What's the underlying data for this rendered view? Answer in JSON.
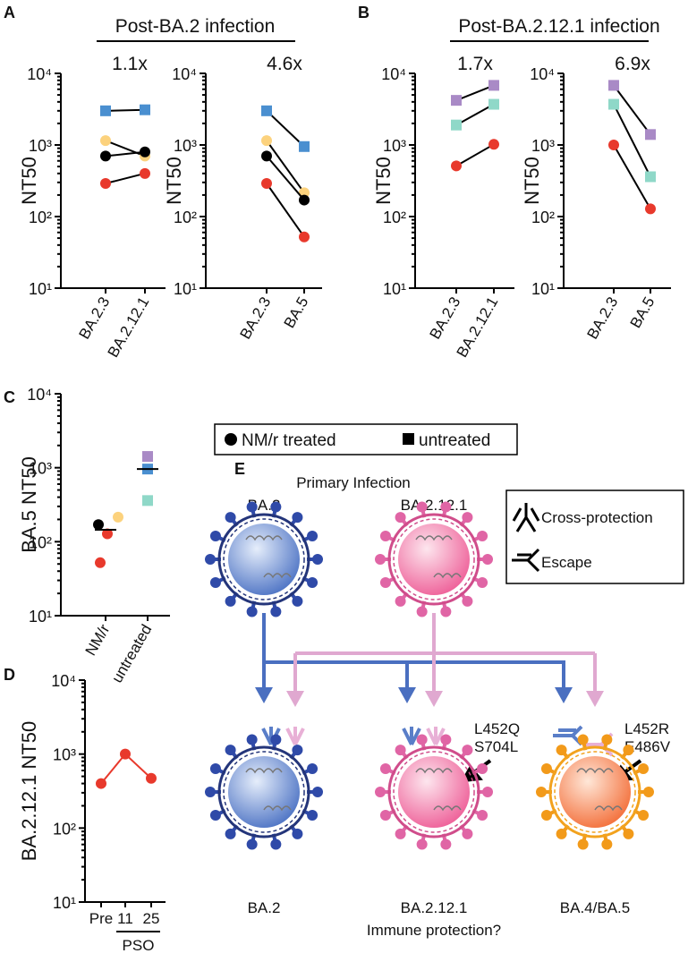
{
  "panel_labels": [
    "A",
    "B",
    "C",
    "D",
    "E"
  ],
  "group_titles": [
    "Post-BA.2 infection",
    "Post-BA.2.12.1 infection"
  ],
  "legend": [
    {
      "label": "NM/r treated",
      "marker": "circle"
    },
    {
      "label": "untreated",
      "marker": "square"
    }
  ],
  "diagram": {
    "title": "Primary Infection",
    "top": [
      "BA.2",
      "BA.2.12.1"
    ],
    "bottom": [
      "BA.2",
      "BA.2.12.1",
      "BA.4/BA.5"
    ],
    "key": [
      "Cross-protection",
      "Escape"
    ],
    "mutations": [
      [
        "L452Q",
        "S704L"
      ],
      [
        "L452R",
        "E486V"
      ]
    ],
    "caption": "Immune protection?"
  },
  "chart_data": [
    {
      "type": "line",
      "title": "1.1x",
      "ylabel": "NT50",
      "log_y": true,
      "categories": [
        "BA.2.3",
        "BA.2.12.1"
      ],
      "ylim": [
        10,
        10000
      ],
      "yticks": [
        {
          "value": 10,
          "label": "10¹"
        },
        {
          "value": 100,
          "label": "10²"
        },
        {
          "value": 1000,
          "label": "10³"
        },
        {
          "value": 10000,
          "label": "10⁴"
        }
      ],
      "series": [
        {
          "color": "#4a8fd0",
          "marker": "square",
          "values": [
            3000,
            3100
          ]
        },
        {
          "color": "#fcd27d",
          "marker": "circle",
          "values": [
            1150,
            700
          ]
        },
        {
          "color": "#000000",
          "marker": "circle",
          "values": [
            700,
            800
          ]
        },
        {
          "color": "#e8392c",
          "marker": "circle",
          "values": [
            290,
            400
          ]
        }
      ]
    },
    {
      "type": "line",
      "title": "4.6x",
      "ylabel": "NT50",
      "log_y": true,
      "categories": [
        "BA.2.3",
        "BA.5"
      ],
      "ylim": [
        10,
        10000
      ],
      "yticks": [
        {
          "value": 10,
          "label": "10¹"
        },
        {
          "value": 100,
          "label": "10²"
        },
        {
          "value": 1000,
          "label": "10³"
        },
        {
          "value": 10000,
          "label": "10⁴"
        }
      ],
      "series": [
        {
          "color": "#4a8fd0",
          "marker": "square",
          "values": [
            3000,
            950
          ]
        },
        {
          "color": "#fcd27d",
          "marker": "circle",
          "values": [
            1150,
            215
          ]
        },
        {
          "color": "#000000",
          "marker": "circle",
          "values": [
            700,
            170
          ]
        },
        {
          "color": "#e8392c",
          "marker": "circle",
          "values": [
            290,
            52
          ]
        }
      ]
    },
    {
      "type": "line",
      "title": "1.7x",
      "ylabel": "NT50",
      "log_y": true,
      "categories": [
        "BA.2.3",
        "BA.2.12.1"
      ],
      "ylim": [
        10,
        10000
      ],
      "yticks": [
        {
          "value": 10,
          "label": "10¹"
        },
        {
          "value": 100,
          "label": "10²"
        },
        {
          "value": 1000,
          "label": "10³"
        },
        {
          "value": 10000,
          "label": "10⁴"
        }
      ],
      "series": [
        {
          "color": "#a98ac6",
          "marker": "square",
          "values": [
            4200,
            6800
          ]
        },
        {
          "color": "#8fd8c8",
          "marker": "square",
          "values": [
            1900,
            3700
          ]
        },
        {
          "color": "#e8392c",
          "marker": "circle",
          "values": [
            510,
            1020
          ]
        }
      ]
    },
    {
      "type": "line",
      "title": "6.9x",
      "ylabel": "NT50",
      "log_y": true,
      "categories": [
        "BA.2.3",
        "BA.5"
      ],
      "ylim": [
        10,
        10000
      ],
      "yticks": [
        {
          "value": 10,
          "label": "10¹"
        },
        {
          "value": 100,
          "label": "10²"
        },
        {
          "value": 1000,
          "label": "10³"
        },
        {
          "value": 10000,
          "label": "10⁴"
        }
      ],
      "series": [
        {
          "color": "#a98ac6",
          "marker": "square",
          "values": [
            6800,
            1400
          ]
        },
        {
          "color": "#8fd8c8",
          "marker": "square",
          "values": [
            3700,
            360
          ]
        },
        {
          "color": "#e8392c",
          "marker": "circle",
          "values": [
            1000,
            128
          ]
        }
      ]
    },
    {
      "type": "strip",
      "ylabel": "BA.5 NT50",
      "log_y": true,
      "categories": [
        "NM/r",
        "untreated"
      ],
      "ylim": [
        10,
        10000
      ],
      "yticks": [
        {
          "value": 10,
          "label": "10¹"
        },
        {
          "value": 100,
          "label": "10²"
        },
        {
          "value": 1000,
          "label": "10³"
        },
        {
          "value": 10000,
          "label": "10⁴"
        }
      ],
      "medians": [
        145,
        960
      ],
      "series": [
        {
          "color": "#000000",
          "marker": "circle",
          "values": [
            170,
            null
          ]
        },
        {
          "color": "#fcd27d",
          "marker": "circle",
          "values": [
            215,
            null
          ]
        },
        {
          "color": "#e8392c",
          "marker": "circle",
          "values": [
            128,
            null
          ]
        },
        {
          "color": "#e8392c",
          "marker": "circle",
          "values": [
            52,
            null
          ]
        },
        {
          "color": "#a98ac6",
          "marker": "square",
          "values": [
            null,
            1420
          ]
        },
        {
          "color": "#4a8fd0",
          "marker": "square",
          "values": [
            null,
            960
          ]
        },
        {
          "color": "#8fd8c8",
          "marker": "square",
          "values": [
            null,
            360
          ]
        }
      ]
    },
    {
      "type": "line",
      "ylabel": "BA.2.12.1 NT50",
      "xlabel": "PSO",
      "log_y": true,
      "categories": [
        "Pre",
        "11",
        "25"
      ],
      "ylim": [
        10,
        10000
      ],
      "yticks": [
        {
          "value": 10,
          "label": "10¹"
        },
        {
          "value": 100,
          "label": "10²"
        },
        {
          "value": 1000,
          "label": "10³"
        },
        {
          "value": 10000,
          "label": "10⁴"
        }
      ],
      "series": [
        {
          "color": "#e8392c",
          "marker": "circle",
          "values": [
            400,
            1000,
            470
          ]
        }
      ]
    }
  ]
}
